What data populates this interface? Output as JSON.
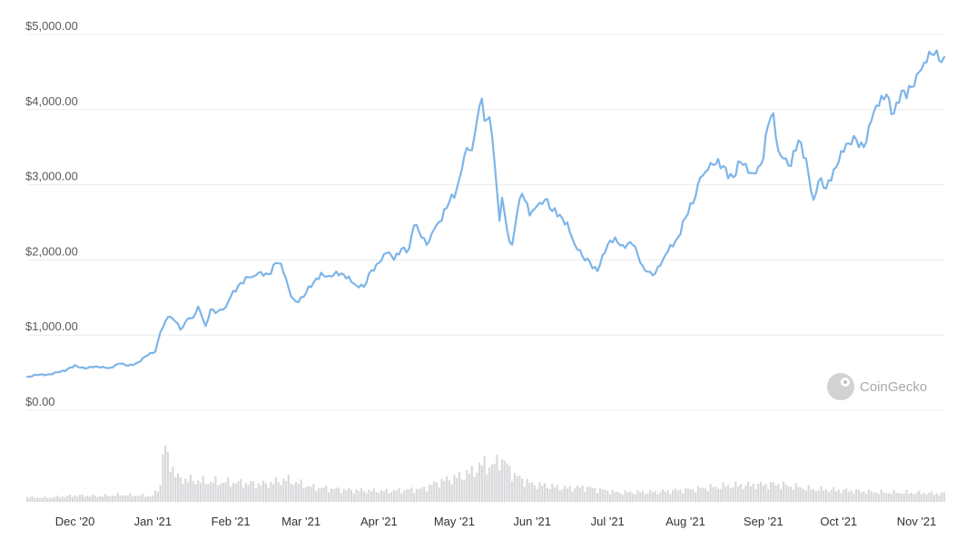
{
  "chart_data": {
    "type": "line",
    "watermark": "CoinGecko",
    "colors": {
      "price_line": "#7eb5e8",
      "volume_bar": "#d9d9dc",
      "grid": "#ececec",
      "watermark": "#a9a9a9"
    },
    "y_ticks": [
      "$0.00",
      "$1,000.00",
      "$2,000.00",
      "$3,000.00",
      "$4,000.00",
      "$5,000.00"
    ],
    "y_tick_values": [
      0,
      1000,
      2000,
      3000,
      4000,
      5000
    ],
    "ylim": [
      0,
      5000
    ],
    "x_ticks": [
      "Dec '20",
      "Jan '21",
      "Feb '21",
      "Mar '21",
      "Apr '21",
      "May '21",
      "Jun '21",
      "Jul '21",
      "Aug '21",
      "Sep '21",
      "Oct '21",
      "Nov '21"
    ],
    "x_tick_dates": [
      "2020-12-01",
      "2021-01-01",
      "2021-02-01",
      "2021-03-01",
      "2021-04-01",
      "2021-05-01",
      "2021-06-01",
      "2021-07-01",
      "2021-08-01",
      "2021-09-01",
      "2021-10-01",
      "2021-11-01"
    ],
    "xlim": [
      "2020-11-12",
      "2021-11-12"
    ],
    "grid": true,
    "price_series": {
      "x": [
        "2020-11-12",
        "2020-11-16",
        "2020-11-20",
        "2020-11-24",
        "2020-11-27",
        "2020-12-01",
        "2020-12-05",
        "2020-12-08",
        "2020-12-12",
        "2020-12-15",
        "2020-12-19",
        "2020-12-22",
        "2020-12-26",
        "2020-12-30",
        "2021-01-02",
        "2021-01-04",
        "2021-01-07",
        "2021-01-10",
        "2021-01-12",
        "2021-01-15",
        "2021-01-17",
        "2021-01-19",
        "2021-01-22",
        "2021-01-24",
        "2021-01-27",
        "2021-01-30",
        "2021-02-01",
        "2021-02-04",
        "2021-02-07",
        "2021-02-10",
        "2021-02-13",
        "2021-02-16",
        "2021-02-19",
        "2021-02-21",
        "2021-02-24",
        "2021-02-26",
        "2021-02-28",
        "2021-03-03",
        "2021-03-06",
        "2021-03-09",
        "2021-03-12",
        "2021-03-14",
        "2021-03-17",
        "2021-03-20",
        "2021-03-23",
        "2021-03-26",
        "2021-03-29",
        "2021-04-01",
        "2021-04-04",
        "2021-04-07",
        "2021-04-10",
        "2021-04-13",
        "2021-04-15",
        "2021-04-18",
        "2021-04-20",
        "2021-04-23",
        "2021-04-26",
        "2021-04-29",
        "2021-05-02",
        "2021-05-04",
        "2021-05-06",
        "2021-05-08",
        "2021-05-10",
        "2021-05-12",
        "2021-05-13",
        "2021-05-15",
        "2021-05-17",
        "2021-05-19",
        "2021-05-20",
        "2021-05-22",
        "2021-05-24",
        "2021-05-26",
        "2021-05-28",
        "2021-05-31",
        "2021-06-03",
        "2021-06-06",
        "2021-06-09",
        "2021-06-12",
        "2021-06-15",
        "2021-06-18",
        "2021-06-21",
        "2021-06-24",
        "2021-06-27",
        "2021-07-01",
        "2021-07-04",
        "2021-07-07",
        "2021-07-11",
        "2021-07-15",
        "2021-07-18",
        "2021-07-20",
        "2021-07-23",
        "2021-07-26",
        "2021-07-29",
        "2021-08-01",
        "2021-08-04",
        "2021-08-07",
        "2021-08-10",
        "2021-08-13",
        "2021-08-16",
        "2021-08-20",
        "2021-08-23",
        "2021-08-26",
        "2021-08-29",
        "2021-09-01",
        "2021-09-03",
        "2021-09-05",
        "2021-09-07",
        "2021-09-09",
        "2021-09-12",
        "2021-09-15",
        "2021-09-18",
        "2021-09-21",
        "2021-09-23",
        "2021-09-26",
        "2021-09-29",
        "2021-10-02",
        "2021-10-05",
        "2021-10-08",
        "2021-10-11",
        "2021-10-14",
        "2021-10-17",
        "2021-10-20",
        "2021-10-23",
        "2021-10-26",
        "2021-10-28",
        "2021-10-30",
        "2021-11-02",
        "2021-11-05",
        "2021-11-08",
        "2021-11-10",
        "2021-11-12"
      ],
      "values": [
        445,
        467,
        475,
        505,
        520,
        600,
        555,
        570,
        580,
        565,
        620,
        590,
        635,
        730,
        780,
        1040,
        1240,
        1180,
        1070,
        1220,
        1230,
        1380,
        1120,
        1340,
        1320,
        1370,
        1510,
        1660,
        1770,
        1780,
        1840,
        1810,
        1960,
        1950,
        1630,
        1480,
        1440,
        1560,
        1700,
        1830,
        1790,
        1800,
        1820,
        1780,
        1660,
        1640,
        1860,
        1960,
        2090,
        2000,
        2150,
        2150,
        2460,
        2300,
        2200,
        2410,
        2520,
        2770,
        2950,
        3200,
        3490,
        3460,
        3850,
        4150,
        3850,
        3900,
        3300,
        2520,
        2830,
        2400,
        2200,
        2630,
        2880,
        2590,
        2720,
        2800,
        2650,
        2600,
        2500,
        2200,
        2050,
        1970,
        1850,
        2200,
        2300,
        2200,
        2200,
        1920,
        1840,
        1820,
        2000,
        2200,
        2300,
        2560,
        2750,
        3100,
        3200,
        3270,
        3250,
        3100,
        3300,
        3160,
        3150,
        3350,
        3800,
        3950,
        3450,
        3350,
        3250,
        3590,
        3350,
        2800,
        3050,
        2950,
        3200,
        3450,
        3550,
        3600,
        3500,
        3850,
        4050,
        4200,
        3950,
        4250,
        4150,
        4300,
        4500,
        4630,
        4730,
        4650,
        4700
      ]
    },
    "volume_series_note": "relative daily volume, 0-1 scale",
    "volume_series": {
      "x": [
        "2020-11-12",
        "2020-11-20",
        "2020-12-01",
        "2020-12-10",
        "2020-12-20",
        "2021-01-01",
        "2021-01-04",
        "2021-01-05",
        "2021-01-11",
        "2021-01-20",
        "2021-02-01",
        "2021-02-15",
        "2021-02-23",
        "2021-03-05",
        "2021-03-20",
        "2021-04-05",
        "2021-04-18",
        "2021-04-25",
        "2021-05-05",
        "2021-05-10",
        "2021-05-13",
        "2021-05-16",
        "2021-05-19",
        "2021-05-20",
        "2021-05-22",
        "2021-05-25",
        "2021-06-01",
        "2021-06-15",
        "2021-06-22",
        "2021-07-05",
        "2021-07-20",
        "2021-08-05",
        "2021-08-20",
        "2021-09-07",
        "2021-09-20",
        "2021-10-01",
        "2021-10-20",
        "2021-11-05",
        "2021-11-12"
      ],
      "values": [
        0.08,
        0.07,
        0.11,
        0.1,
        0.12,
        0.1,
        0.28,
        0.92,
        0.4,
        0.35,
        0.33,
        0.3,
        0.38,
        0.25,
        0.2,
        0.18,
        0.22,
        0.34,
        0.45,
        0.56,
        0.66,
        0.58,
        0.76,
        0.7,
        0.62,
        0.45,
        0.3,
        0.23,
        0.25,
        0.16,
        0.17,
        0.22,
        0.28,
        0.3,
        0.22,
        0.2,
        0.16,
        0.15,
        0.14
      ]
    }
  }
}
